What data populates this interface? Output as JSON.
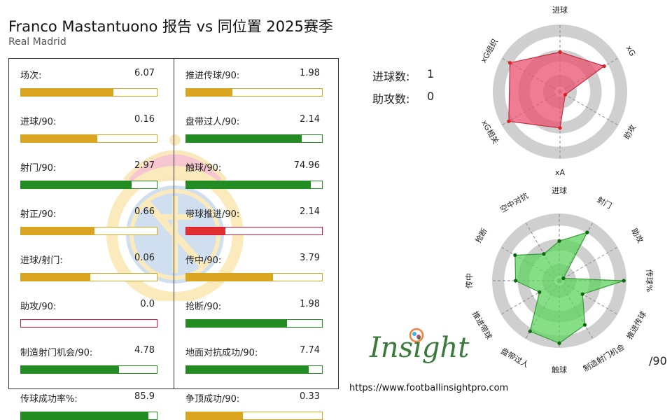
{
  "header": {
    "title": "Franco Mastantuono 报告 vs 同位置 2025赛季",
    "team": "Real Madrid"
  },
  "colors": {
    "gold": "#DAA520",
    "green": "#228B22",
    "red": "#DC143C",
    "red_fill": "#E03030",
    "radar1": "#E8506E",
    "radar2": "#5DD35D"
  },
  "stats_left": [
    {
      "label": "场次:",
      "value": "6.07",
      "fill": 0.68,
      "color": "gold"
    },
    {
      "label": "进球/90:",
      "value": "0.16",
      "fill": 0.56,
      "color": "gold"
    },
    {
      "label": "射门/90:",
      "value": "2.97",
      "fill": 0.815,
      "color": "green"
    },
    {
      "label": "射正/90:",
      "value": "0.66",
      "fill": 0.54,
      "color": "gold"
    },
    {
      "label": "进球/射门:",
      "value": "0.06",
      "fill": 0.51,
      "color": "gold"
    },
    {
      "label": "助攻/90:",
      "value": "0.0",
      "fill": 0.0,
      "color": "red"
    },
    {
      "label": "制造射门机会/90:",
      "value": "4.78",
      "fill": 0.72,
      "color": "green"
    },
    {
      "label": "传球成功率%:",
      "value": "85.9",
      "fill": 0.94,
      "color": "green"
    }
  ],
  "stats_right": [
    {
      "label": "推进传球/90:",
      "value": "1.98",
      "fill": 0.34,
      "color": "gold"
    },
    {
      "label": "盘带过人/90:",
      "value": "2.14",
      "fill": 0.85,
      "color": "green"
    },
    {
      "label": "触球/90:",
      "value": "74.96",
      "fill": 0.92,
      "color": "green"
    },
    {
      "label": "带球推进/90:",
      "value": "2.14",
      "fill": 0.29,
      "color": "red"
    },
    {
      "label": "传中/90:",
      "value": "3.79",
      "fill": 0.64,
      "color": "gold"
    },
    {
      "label": "抢断/90:",
      "value": "1.98",
      "fill": 0.74,
      "color": "green"
    },
    {
      "label": "地面对抗成功/90:",
      "value": "7.74",
      "fill": 0.9,
      "color": "green"
    },
    {
      "label": "争顶成功/90:",
      "value": "0.33",
      "fill": 0.42,
      "color": "gold"
    }
  ],
  "counts": [
    {
      "label": "进球数:",
      "value": "1"
    },
    {
      "label": "助攻数:",
      "value": "0"
    }
  ],
  "chart_data": [
    {
      "type": "radar",
      "range": [
        0,
        1
      ],
      "categories": [
        "进球",
        "xG",
        "助攻",
        "xA",
        "xG相关",
        "xG组织"
      ],
      "values": [
        0.59,
        0.76,
        0.09,
        0.54,
        0.88,
        0.86
      ]
    },
    {
      "type": "radar",
      "range": [
        0,
        1
      ],
      "categories": [
        "进球",
        "射门",
        "助攻",
        "传球%",
        "推进传球",
        "制造射门机会",
        "触球",
        "盘带过人",
        "推进带球",
        "传中",
        "抢断",
        "空中对抗"
      ],
      "values": [
        0.59,
        0.83,
        0.07,
        0.96,
        0.4,
        0.76,
        0.93,
        0.87,
        0.34,
        0.65,
        0.76,
        0.46
      ]
    }
  ],
  "per90_label": "/90",
  "logo": {
    "text": "Insight"
  },
  "footer": {
    "url": "https://www.footballinsightpro.com"
  }
}
